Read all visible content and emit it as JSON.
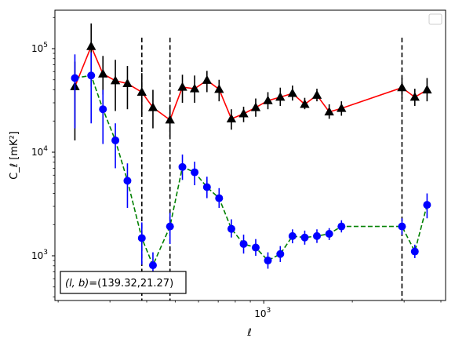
{
  "chart_data": {
    "type": "scatter",
    "title": "",
    "xlabel": "ℓ",
    "ylabel": "C_ℓ [mK²]",
    "xscale": "log",
    "yscale": "log",
    "xlim": [
      195,
      4150
    ],
    "ylim": [
      370,
      235000
    ],
    "x_ticks": [
      {
        "value": 1000,
        "base": "10",
        "exp": "3"
      }
    ],
    "y_ticks": [
      {
        "value": 1000,
        "base": "10",
        "exp": "3"
      },
      {
        "value": 10000,
        "base": "10",
        "exp": "4"
      },
      {
        "value": 100000,
        "base": "10",
        "exp": "5"
      }
    ],
    "vlines": [
      385,
      480,
      2950
    ],
    "annotation": {
      "prefix": "(l, b)",
      "value": "=(139.32,21.27)"
    },
    "legend": {
      "position": "upper right",
      "entries": []
    },
    "grid": false,
    "x": [
      228,
      259,
      284,
      313,
      344,
      385,
      420,
      480,
      529,
      582,
      641,
      705,
      776,
      854,
      939,
      1033,
      1138,
      1252,
      1378,
      1516,
      1669,
      1837,
      2021,
      2225,
      2448,
      2695,
      2950,
      3262,
      3590
    ],
    "series": [
      {
        "color": "#000000",
        "line_color": "#ff0000",
        "line_style": "solid",
        "marker": "triangle",
        "errorbar_color": "#000000",
        "values": [
          43000,
          105000,
          57000,
          49000,
          46000,
          38000,
          27000,
          20500,
          42500,
          41000,
          49500,
          40500,
          21000,
          23500,
          27000,
          31500,
          34000,
          37000,
          29000,
          35500,
          24500,
          26500,
          42000,
          34000,
          40000
        ],
        "x_index": [
          0,
          1,
          2,
          3,
          4,
          5,
          6,
          7,
          8,
          9,
          10,
          11,
          12,
          13,
          14,
          15,
          16,
          17,
          18,
          19,
          20,
          21,
          26,
          27,
          28
        ],
        "lower": [
          13000,
          43000,
          36000,
          25000,
          26000,
          23000,
          17000,
          14000,
          30000,
          30000,
          38000,
          31000,
          16500,
          19500,
          22000,
          26000,
          28000,
          31500,
          26000,
          31000,
          21000,
          22500,
          33000,
          28000,
          31000
        ],
        "upper": [
          75000,
          175000,
          85000,
          78000,
          68000,
          58000,
          40000,
          28000,
          56000,
          55000,
          61000,
          50000,
          26000,
          27500,
          33000,
          38000,
          42000,
          44000,
          33500,
          41000,
          29000,
          31000,
          52000,
          41000,
          52000
        ]
      },
      {
        "color": "#0000ff",
        "line_color": "#008000",
        "line_style": "dashed",
        "marker": "circle",
        "errorbar_color": "#0000ff",
        "values": [
          52000,
          55000,
          26000,
          13000,
          5300,
          1480,
          810,
          1920,
          7200,
          6400,
          4600,
          3600,
          1820,
          1300,
          1200,
          900,
          1040,
          1550,
          1500,
          1550,
          1630,
          1920,
          1920,
          1100,
          3100
        ],
        "x_index": [
          0,
          1,
          2,
          3,
          4,
          5,
          6,
          7,
          8,
          9,
          10,
          11,
          12,
          13,
          14,
          15,
          16,
          17,
          18,
          19,
          20,
          21,
          26,
          27,
          28
        ],
        "lower": [
          17000,
          19000,
          12000,
          7000,
          2900,
          820,
          530,
          1300,
          5400,
          4800,
          3600,
          2900,
          1500,
          1050,
          1000,
          750,
          870,
          1320,
          1280,
          1330,
          1420,
          1680,
          1600,
          950,
          2300
        ],
        "upper": [
          88000,
          92000,
          40000,
          19000,
          7800,
          2100,
          1080,
          2600,
          9500,
          8100,
          5800,
          4500,
          2250,
          1600,
          1450,
          1080,
          1240,
          1800,
          1750,
          1800,
          1850,
          2200,
          2300,
          1280,
          4000
        ]
      }
    ]
  }
}
